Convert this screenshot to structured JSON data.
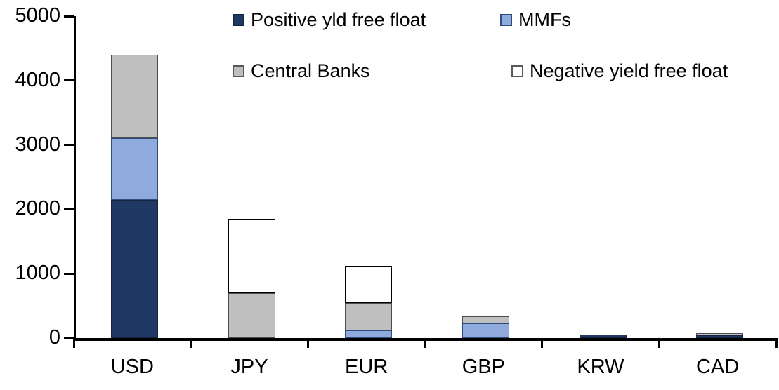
{
  "chart_data": {
    "type": "bar",
    "subtype": "stacked-column",
    "categories": [
      "USD",
      "JPY",
      "EUR",
      "GBP",
      "KRW",
      "CAD"
    ],
    "series": [
      {
        "name": "Positive yld free float",
        "color": "#1F3864",
        "border": "#14233F",
        "values": [
          2150,
          0,
          0,
          0,
          50,
          45
        ]
      },
      {
        "name": "MMFs",
        "color": "#8FAADC",
        "border": "#2E4D7B",
        "values": [
          950,
          0,
          120,
          230,
          0,
          0
        ]
      },
      {
        "name": "Central Banks",
        "color": "#BFBFBF",
        "border": "#4D4D4D",
        "values": [
          1300,
          700,
          420,
          110,
          0,
          30
        ]
      },
      {
        "name": "Negative yield free float",
        "color": "#FFFFFF",
        "border": "#000000",
        "values": [
          0,
          1150,
          580,
          0,
          0,
          0
        ]
      }
    ],
    "totals": [
      4400,
      1850,
      1120,
      340,
      50,
      75
    ],
    "title": "",
    "xlabel": "",
    "ylabel": "",
    "ylim": [
      0,
      5000
    ],
    "yticks": [
      0,
      1000,
      2000,
      3000,
      4000,
      5000
    ],
    "grid": false,
    "legend_position": "top",
    "axis_color": "#000000",
    "background_color": "#FFFFFF"
  },
  "legend": {
    "items": [
      {
        "label": "Positive yld free float"
      },
      {
        "label": "MMFs"
      },
      {
        "label": "Central Banks"
      },
      {
        "label": "Negative yield free float"
      }
    ]
  }
}
